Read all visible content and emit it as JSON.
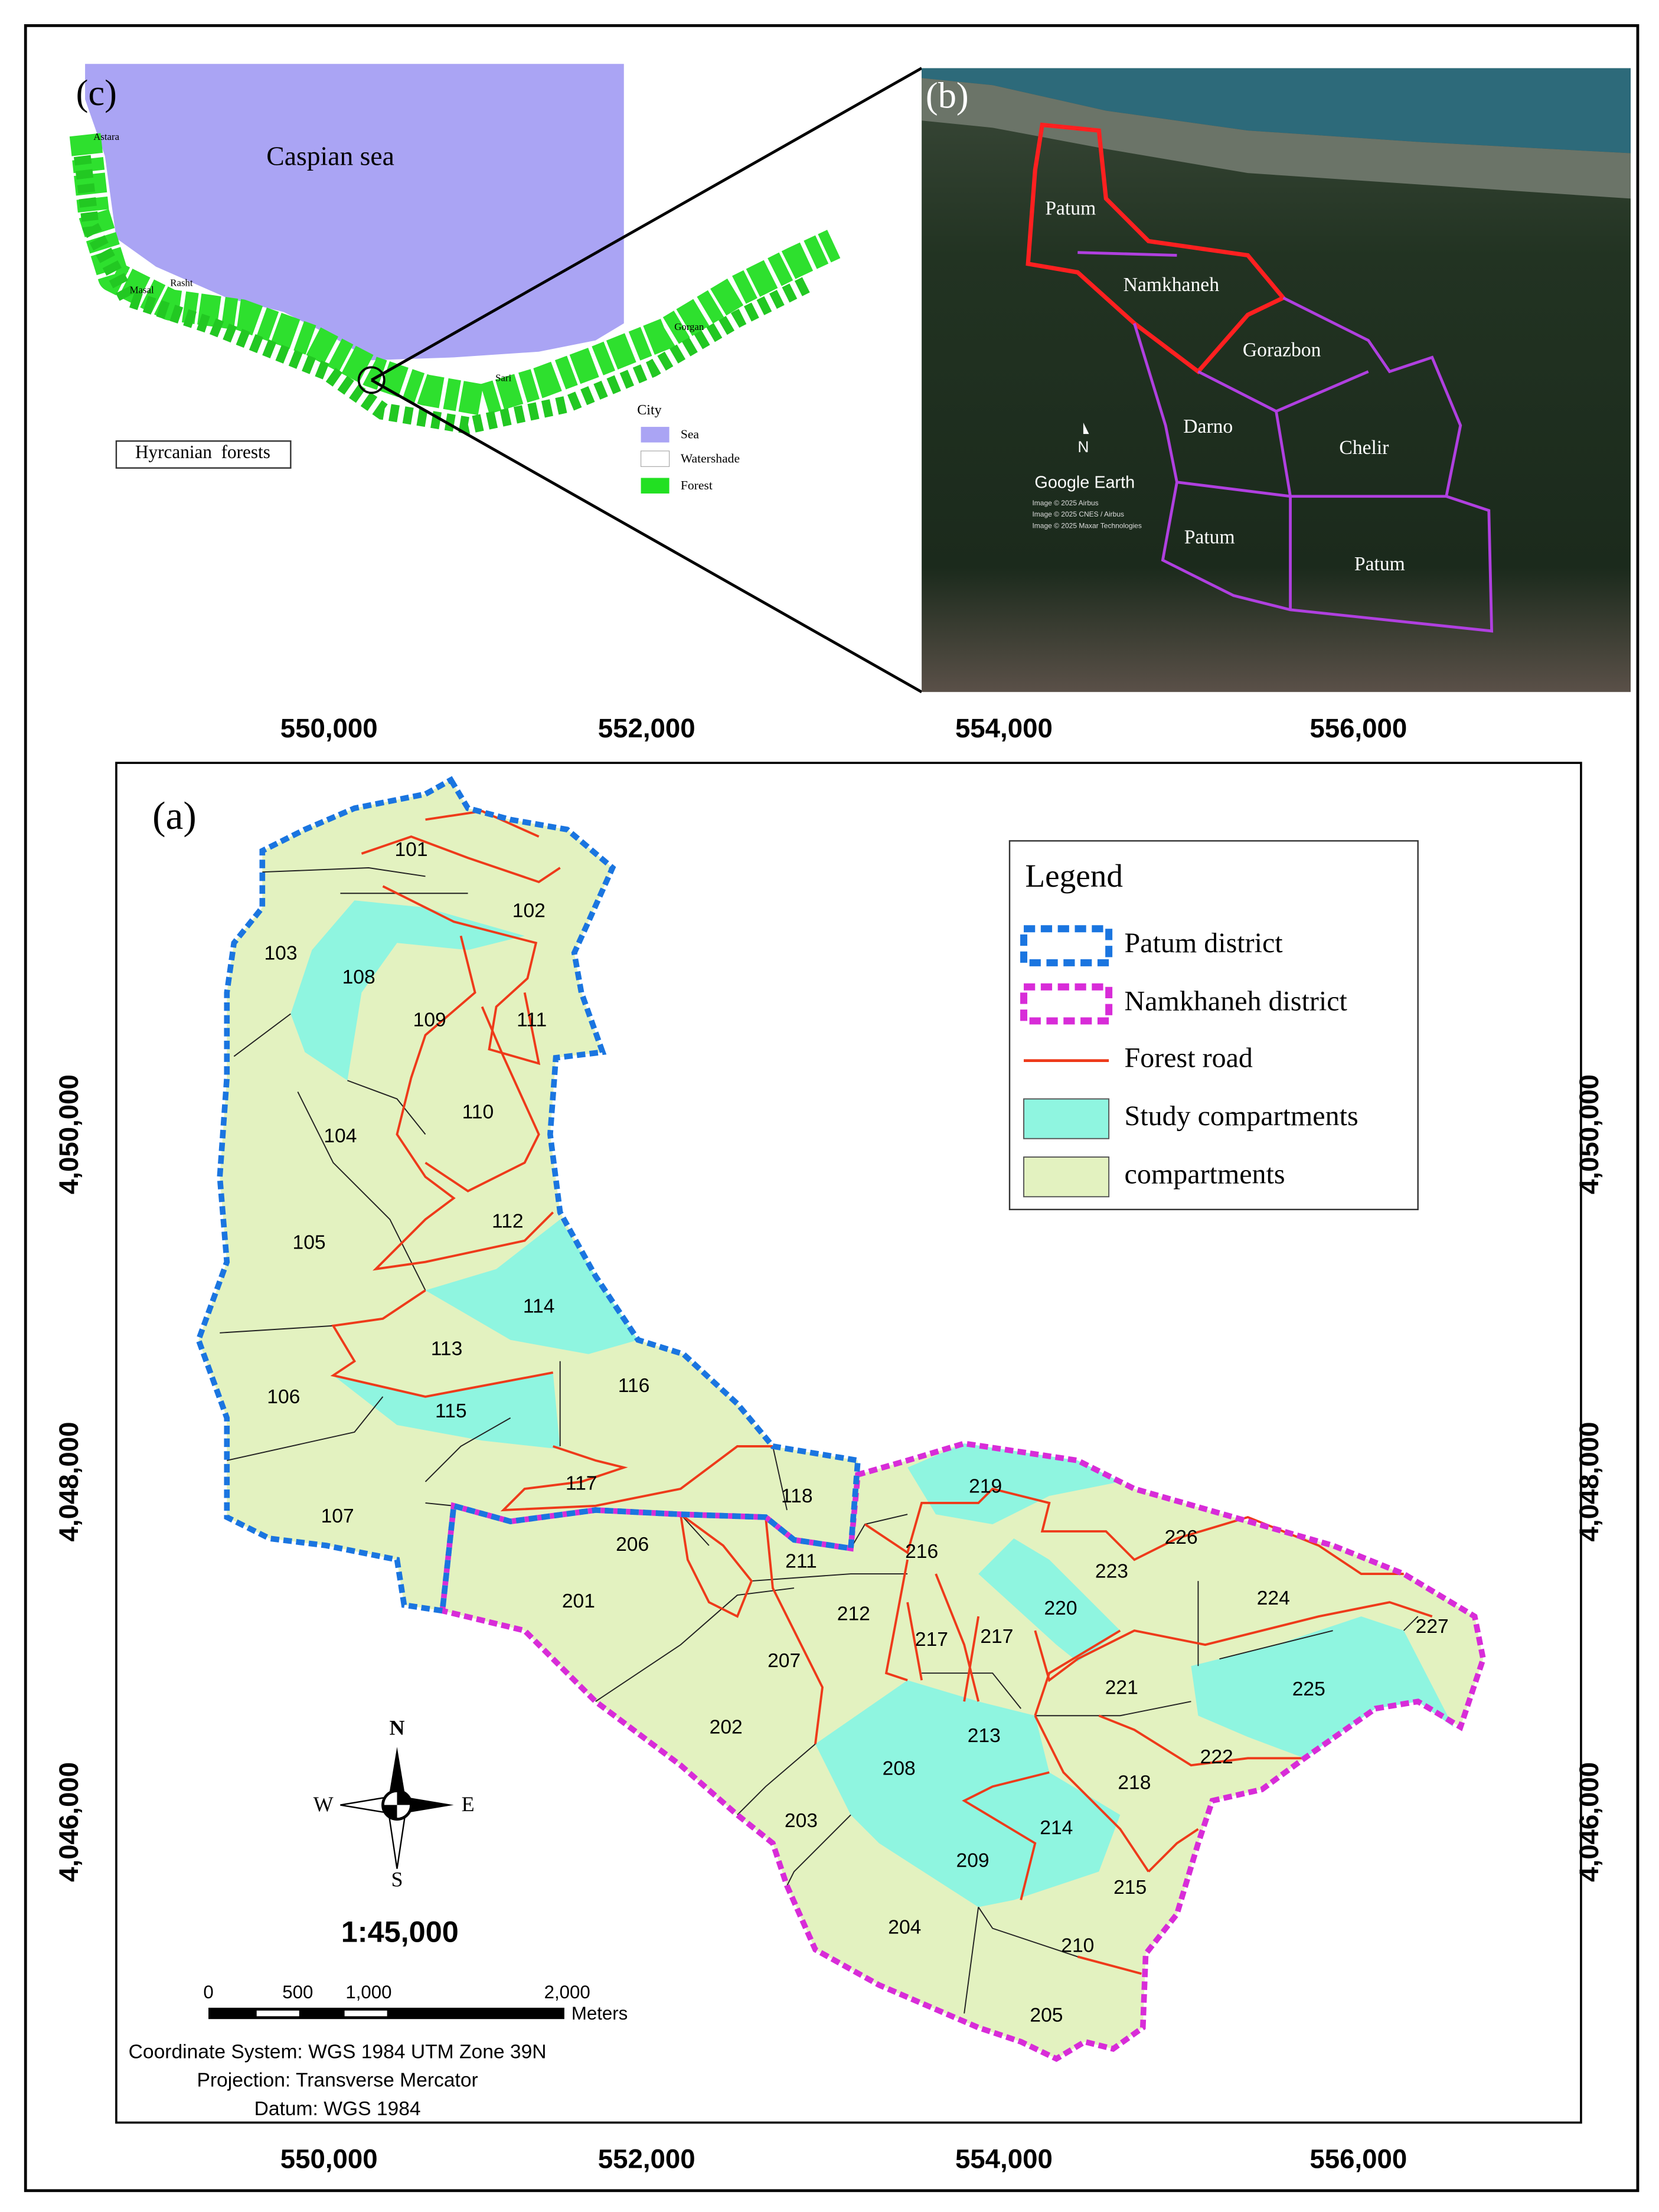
{
  "panel_c": {
    "label": "(c)",
    "sea_label": "Caspian sea",
    "cities": [
      "Astara",
      "Masal",
      "Rasht",
      "Sari",
      "Gorgan"
    ],
    "legend": {
      "title": "City",
      "items": [
        "Sea",
        "Watershade",
        "Forest"
      ]
    },
    "caption": "Hyrcanian  forests"
  },
  "panel_b": {
    "label": "(b)",
    "districts": [
      "Patum",
      "Namkhaneh",
      "Gorazbon",
      "Darno",
      "Chelir",
      "Patum",
      "Patum"
    ],
    "north": "N",
    "brand": "Google Earth",
    "attributions": [
      "Image © 2025 Airbus",
      "Image © 2025 CNES / Airbus",
      "Image © 2025 Maxar Technologies"
    ]
  },
  "panel_a": {
    "label": "(a)",
    "x_ticks": [
      "550,000",
      "552,000",
      "554,000",
      "556,000"
    ],
    "y_ticks": [
      "4,050,000",
      "4,048,000",
      "4,046,000"
    ],
    "legend": {
      "title": "Legend",
      "items": [
        "Patum district",
        "Namkhaneh district",
        "Forest road",
        "Study compartments",
        "compartments"
      ]
    },
    "compartments": [
      "101",
      "102",
      "103",
      "108",
      "109",
      "111",
      "110",
      "104",
      "112",
      "105",
      "114",
      "113",
      "106",
      "116",
      "115",
      "117",
      "107",
      "118",
      "206",
      "211",
      "201",
      "219",
      "226",
      "216",
      "223",
      "224",
      "212",
      "220",
      "217",
      "217",
      "227",
      "207",
      "221",
      "225",
      "202",
      "213",
      "222",
      "208",
      "218",
      "203",
      "214",
      "209",
      "215",
      "204",
      "210",
      "205"
    ],
    "compass": {
      "north": "N",
      "south": "S",
      "west": "W",
      "east": "E"
    },
    "scale": "1:45,000",
    "scale_bar": {
      "labels": [
        "0",
        "500",
        "1,000",
        "2,000"
      ],
      "unit": "Meters"
    },
    "notes": [
      "Coordinate System: WGS 1984 UTM Zone 39N",
      "Projection: Transverse Mercator",
      "Datum: WGS 1984"
    ]
  }
}
